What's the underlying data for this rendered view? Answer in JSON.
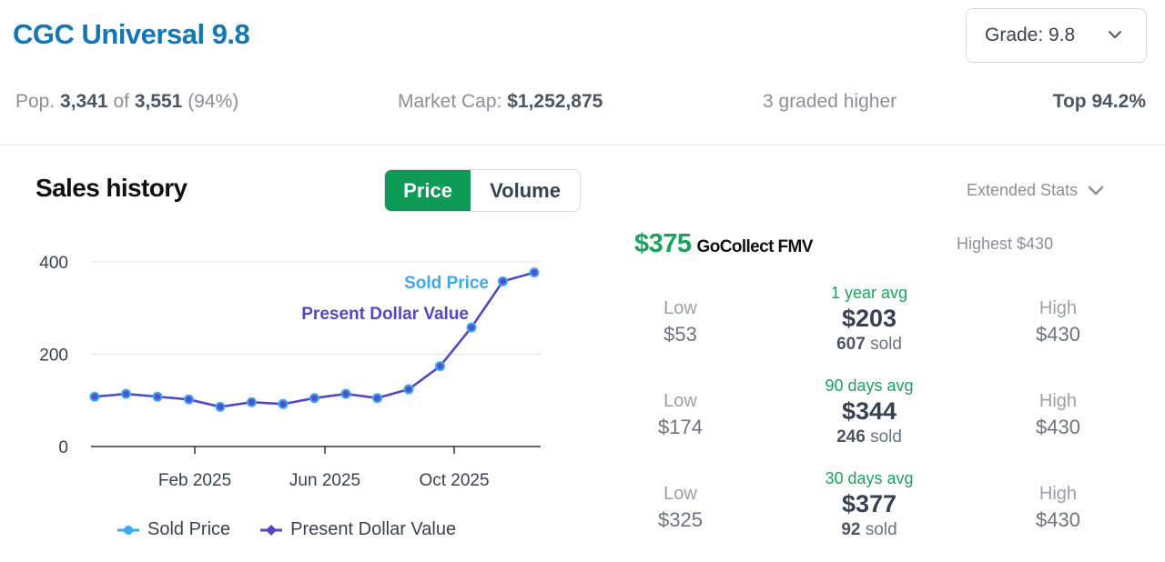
{
  "header": {
    "title": "CGC Universal 9.8",
    "grade_select": "Grade: 9.8"
  },
  "stats": {
    "pop_prefix": "Pop.",
    "pop_count": "3,341",
    "pop_of": "of",
    "pop_total": "3,551",
    "pop_pct": "(94%)",
    "market_cap_label": "Market Cap:",
    "market_cap_value": "$1,252,875",
    "graded_higher": "3 graded higher",
    "top_pct": "Top 94.2%"
  },
  "sales": {
    "title": "Sales history",
    "toggle": {
      "price": "Price",
      "volume": "Volume"
    },
    "extended_stats": "Extended Stats"
  },
  "fmv": {
    "price": "$375",
    "label": "GoCollect FMV",
    "highest": "Highest $430"
  },
  "periods": [
    {
      "low_label": "Low",
      "low": "$53",
      "avg_label": "1 year avg",
      "avg": "$203",
      "sold_count": "607",
      "sold_word": "sold",
      "high_label": "High",
      "high": "$430"
    },
    {
      "low_label": "Low",
      "low": "$174",
      "avg_label": "90 days avg",
      "avg": "$344",
      "sold_count": "246",
      "sold_word": "sold",
      "high_label": "High",
      "high": "$430"
    },
    {
      "low_label": "Low",
      "low": "$325",
      "avg_label": "30 days avg",
      "avg": "$377",
      "sold_count": "92",
      "sold_word": "sold",
      "high_label": "High",
      "high": "$430"
    }
  ],
  "colors": {
    "sold_price": "#3aa9f1",
    "present_dollar": "#5546c4"
  },
  "chart_data": {
    "type": "line",
    "x": [
      "2024-11",
      "2024-12",
      "2025-01",
      "2025-02",
      "2025-03",
      "2025-04",
      "2025-05",
      "2025-06",
      "2025-07",
      "2025-08",
      "2025-09",
      "2025-10",
      "2025-11",
      "2025-12",
      "2026-01"
    ],
    "x_ticks": [
      "Feb 2025",
      "Jun 2025",
      "Oct 2025"
    ],
    "y_ticks": [
      "0",
      "200",
      "400"
    ],
    "ylim": [
      0,
      400
    ],
    "series": [
      {
        "name": "Sold Price",
        "values": [
          108,
          114,
          108,
          102,
          86,
          96,
          92,
          105,
          114,
          105,
          124,
          174,
          258,
          358,
          377
        ]
      },
      {
        "name": "Present Dollar Value",
        "values": [
          108,
          114,
          108,
          102,
          86,
          96,
          92,
          105,
          114,
          105,
          124,
          174,
          258,
          358,
          377
        ]
      }
    ],
    "annotations": [
      "Sold Price",
      "Present Dollar Value"
    ],
    "legend": "bottom"
  }
}
